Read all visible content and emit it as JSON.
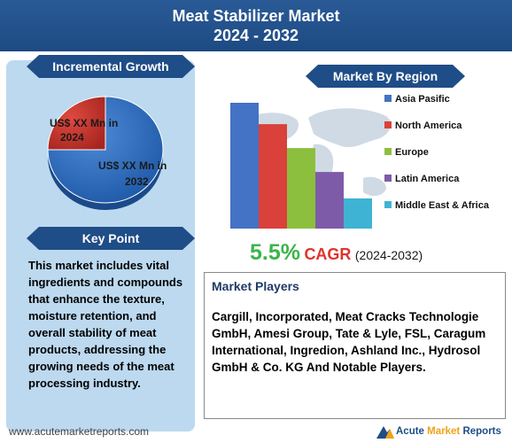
{
  "header": {
    "title_line1": "Meat Stabilizer Market",
    "title_line2": "2024 - 2032"
  },
  "incremental_growth": {
    "heading": "Incremental Growth",
    "slice_small_label": "US$ XX Mn in 2024",
    "slice_large_label": "US$ XX Mn in 2032",
    "colors": {
      "small": "#c9332b",
      "large": "#2e6fbe"
    }
  },
  "key_point": {
    "heading": "Key Point",
    "text": "This market includes vital ingredients and compounds that enhance the texture, moisture retention, and overall stability of meat products, addressing the growing needs of the meat processing industry."
  },
  "market_by_region": {
    "heading": "Market By Region"
  },
  "chart_data": [
    {
      "type": "pie",
      "labels": [
        "US$ XX Mn in 2024",
        "US$ XX Mn in 2032"
      ],
      "values": [
        25,
        75
      ],
      "colors": [
        "#c9332b",
        "#2e6fbe"
      ]
    },
    {
      "type": "bar",
      "categories": [
        "Asia Pasific",
        "North America",
        "Europe",
        "Latin America",
        "Middle East & Africa"
      ],
      "values": [
        100,
        83,
        64,
        45,
        24
      ],
      "colors": [
        "#4472c4",
        "#d9413a",
        "#8dbf3f",
        "#7e5ba8",
        "#3fb3d3"
      ],
      "legend_position": "right",
      "ylim": [
        0,
        100
      ]
    }
  ],
  "cagr": {
    "value": "5.5%",
    "label": "CAGR",
    "period": "(2024-2032)"
  },
  "market_players": {
    "heading": "Market Players",
    "text": "Cargill, Incorporated, Meat Cracks Technologie GmbH, Amesi Group, Tate & Lyle, FSL, Caragum International, Ingredion, Ashland Inc., Hydrosol GmbH & Co. KG And Notable Players."
  },
  "footer": {
    "url": "www.acutemarketreports.com",
    "brand_part1": "Acute",
    "brand_part2": "Market",
    "brand_part3": "Reports"
  }
}
